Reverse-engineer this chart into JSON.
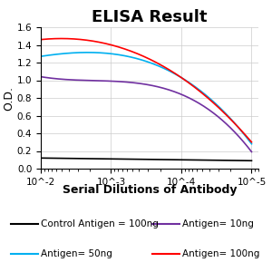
{
  "title": "ELISA Result",
  "ylabel": "O.D.",
  "xlabel": "Serial Dilutions of Antibody",
  "x_values": [
    1e-05,
    0.0001,
    0.001,
    0.01
  ],
  "control_antigen_100ng": {
    "label": "Control Antigen = 100ng",
    "color": "#000000",
    "y": [
      0.09,
      0.1,
      0.11,
      0.12
    ]
  },
  "antigen_10ng": {
    "label": "Antigen= 10ng",
    "color": "#7030A0",
    "y": [
      0.19,
      0.84,
      0.99,
      1.04
    ]
  },
  "antigen_50ng": {
    "label": "Antigen= 50ng",
    "color": "#00B0F0",
    "y": [
      0.28,
      1.03,
      1.3,
      1.27
    ]
  },
  "antigen_100ng": {
    "label": "Antigen= 100ng",
    "color": "#FF0000",
    "y": [
      0.3,
      1.03,
      1.4,
      1.46
    ]
  },
  "ylim": [
    0,
    1.6
  ],
  "yticks": [
    0,
    0.2,
    0.4,
    0.6,
    0.8,
    1.0,
    1.2,
    1.4,
    1.6
  ],
  "title_fontsize": 13,
  "label_fontsize": 9,
  "legend_fontsize": 7.5,
  "background_color": "#ffffff"
}
